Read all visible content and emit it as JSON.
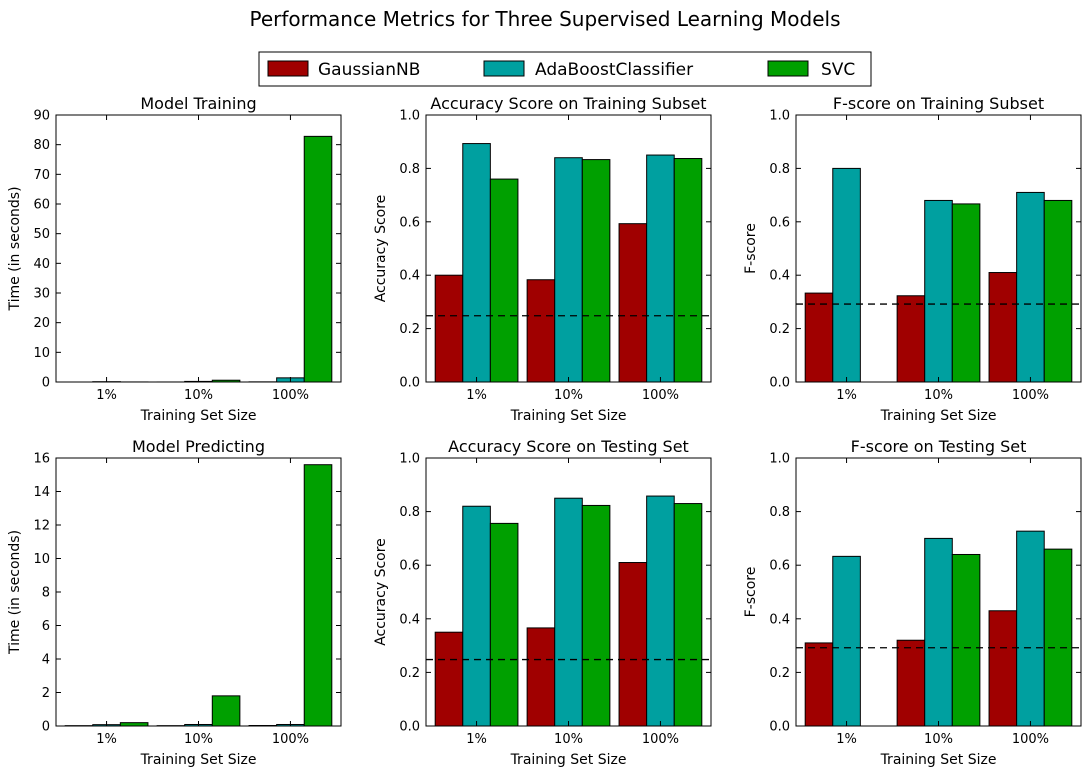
{
  "figure": {
    "title": "Performance Metrics for Three Supervised Learning Models"
  },
  "legend": {
    "placement": "top-center",
    "entries": [
      {
        "label": "GaussianNB",
        "color": "#a00000"
      },
      {
        "label": "AdaBoostClassifier",
        "color": "#00a0a0"
      },
      {
        "label": "SVC",
        "color": "#00a000"
      }
    ]
  },
  "chart_data": [
    {
      "type": "bar",
      "title": "Model Training",
      "xlabel": "Training Set Size",
      "ylabel": "Time (in seconds)",
      "categories": [
        "1%",
        "10%",
        "100%"
      ],
      "ylim": [
        0,
        90
      ],
      "yticks": [
        0,
        10,
        20,
        30,
        40,
        50,
        60,
        70,
        80,
        90
      ],
      "yticklabels": [
        "0",
        "10",
        "20",
        "30",
        "40",
        "50",
        "60",
        "70",
        "80",
        "90"
      ],
      "baseline": null,
      "series": [
        {
          "name": "GaussianNB",
          "values": [
            0.0,
            0.01,
            0.05
          ]
        },
        {
          "name": "AdaBoostClassifier",
          "values": [
            0.1,
            0.2,
            1.4
          ]
        },
        {
          "name": "SVC",
          "values": [
            0.02,
            0.6,
            82.8
          ]
        }
      ]
    },
    {
      "type": "bar",
      "title": "Accuracy Score on Training Subset",
      "xlabel": "Training Set Size",
      "ylabel": "Accuracy Score",
      "categories": [
        "1%",
        "10%",
        "100%"
      ],
      "ylim": [
        0,
        1.0
      ],
      "yticks": [
        0,
        0.2,
        0.4,
        0.6,
        0.8,
        1.0
      ],
      "yticklabels": [
        "0.0",
        "0.2",
        "0.4",
        "0.6",
        "0.8",
        "1.0"
      ],
      "baseline": 0.248,
      "series": [
        {
          "name": "GaussianNB",
          "values": [
            0.4,
            0.383,
            0.593
          ]
        },
        {
          "name": "AdaBoostClassifier",
          "values": [
            0.893,
            0.84,
            0.85
          ]
        },
        {
          "name": "SVC",
          "values": [
            0.76,
            0.833,
            0.837
          ]
        }
      ]
    },
    {
      "type": "bar",
      "title": "F-score on Training Subset",
      "xlabel": "Training Set Size",
      "ylabel": "F-score",
      "categories": [
        "1%",
        "10%",
        "100%"
      ],
      "ylim": [
        0,
        1.0
      ],
      "yticks": [
        0,
        0.2,
        0.4,
        0.6,
        0.8,
        1.0
      ],
      "yticklabels": [
        "0.0",
        "0.2",
        "0.4",
        "0.6",
        "0.8",
        "1.0"
      ],
      "baseline": 0.292,
      "series": [
        {
          "name": "GaussianNB",
          "values": [
            0.333,
            0.323,
            0.41
          ]
        },
        {
          "name": "AdaBoostClassifier",
          "values": [
            0.8,
            0.68,
            0.71
          ]
        },
        {
          "name": "SVC",
          "values": [
            0.0,
            0.667,
            0.68
          ]
        }
      ]
    },
    {
      "type": "bar",
      "title": "Model Predicting",
      "xlabel": "Training Set Size",
      "ylabel": "Time (in seconds)",
      "categories": [
        "1%",
        "10%",
        "100%"
      ],
      "ylim": [
        0,
        16
      ],
      "yticks": [
        0,
        2,
        4,
        6,
        8,
        10,
        12,
        14,
        16
      ],
      "yticklabels": [
        "0",
        "2",
        "4",
        "6",
        "8",
        "10",
        "12",
        "14",
        "16"
      ],
      "baseline": null,
      "series": [
        {
          "name": "GaussianNB",
          "values": [
            0.02,
            0.02,
            0.03
          ]
        },
        {
          "name": "AdaBoostClassifier",
          "values": [
            0.08,
            0.09,
            0.09
          ]
        },
        {
          "name": "SVC",
          "values": [
            0.2,
            1.8,
            15.6
          ]
        }
      ]
    },
    {
      "type": "bar",
      "title": "Accuracy Score on Testing Set",
      "xlabel": "Training Set Size",
      "ylabel": "Accuracy Score",
      "categories": [
        "1%",
        "10%",
        "100%"
      ],
      "ylim": [
        0,
        1.0
      ],
      "yticks": [
        0,
        0.2,
        0.4,
        0.6,
        0.8,
        1.0
      ],
      "yticklabels": [
        "0.0",
        "0.2",
        "0.4",
        "0.6",
        "0.8",
        "1.0"
      ],
      "baseline": 0.248,
      "series": [
        {
          "name": "GaussianNB",
          "values": [
            0.35,
            0.366,
            0.61
          ]
        },
        {
          "name": "AdaBoostClassifier",
          "values": [
            0.82,
            0.85,
            0.858
          ]
        },
        {
          "name": "SVC",
          "values": [
            0.756,
            0.823,
            0.83
          ]
        }
      ]
    },
    {
      "type": "bar",
      "title": "F-score on Testing Set",
      "xlabel": "Training Set Size",
      "ylabel": "F-score",
      "categories": [
        "1%",
        "10%",
        "100%"
      ],
      "ylim": [
        0,
        1.0
      ],
      "yticks": [
        0,
        0.2,
        0.4,
        0.6,
        0.8,
        1.0
      ],
      "yticklabels": [
        "0.0",
        "0.2",
        "0.4",
        "0.6",
        "0.8",
        "1.0"
      ],
      "baseline": 0.292,
      "series": [
        {
          "name": "GaussianNB",
          "values": [
            0.31,
            0.32,
            0.43
          ]
        },
        {
          "name": "AdaBoostClassifier",
          "values": [
            0.633,
            0.7,
            0.727
          ]
        },
        {
          "name": "SVC",
          "values": [
            0.0,
            0.64,
            0.66
          ]
        }
      ]
    }
  ]
}
